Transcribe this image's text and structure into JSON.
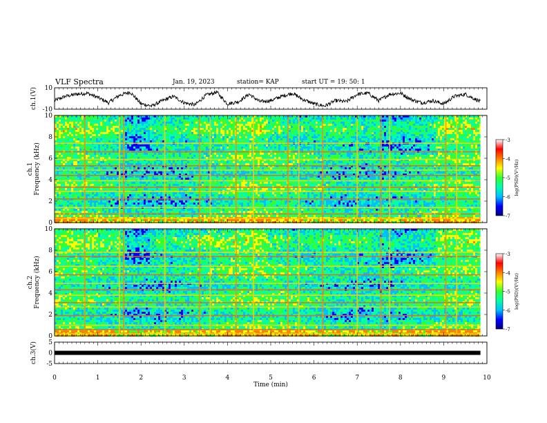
{
  "header": {
    "title": "VLF Spectra",
    "date": "Jan. 19, 2023",
    "station": "station= KAP",
    "start": "start  UT =   19: 50: 1"
  },
  "chart_data": [
    {
      "type": "line",
      "panel": "ch1-waveform",
      "ylabel": "ch.1(V)",
      "ylim": [
        -10,
        10
      ],
      "yticks": [
        "10",
        "-10"
      ],
      "xlim": [
        0,
        10
      ],
      "x_extent": [
        0,
        9.85
      ],
      "series": [
        {
          "x": [
            0,
            0.25,
            0.5,
            0.75,
            1,
            1.25,
            1.5,
            1.75,
            2,
            2.25,
            2.5,
            2.75,
            3,
            3.25,
            3.5,
            3.75,
            4,
            4.25,
            4.5,
            4.75,
            5,
            5.25,
            5.5,
            5.75,
            6,
            6.25,
            6.5,
            6.75,
            7,
            7.25,
            7.5,
            7.75,
            8,
            8.25,
            8.5,
            8.75,
            9,
            9.25,
            9.5,
            9.75,
            9.85
          ],
          "values": [
            -2,
            2,
            4,
            5,
            1,
            -4,
            3,
            6,
            -5,
            -7,
            -2,
            2,
            -4,
            -6,
            3,
            6,
            -5,
            -3,
            4,
            -3,
            -2,
            2,
            5,
            -1,
            -5,
            -7,
            -2,
            -3,
            4,
            5,
            -2,
            4,
            5,
            -1,
            -4,
            -2,
            -5,
            2,
            4,
            -1,
            -3
          ]
        }
      ],
      "line_color": "#000000"
    },
    {
      "type": "heatmap",
      "panel": "ch1-spectrogram",
      "ylabel": "ch.1\nFrequency (kHz)",
      "ylim": [
        0,
        10
      ],
      "yticks": [
        "0",
        "2",
        "4",
        "6",
        "8",
        "10"
      ],
      "xlim": [
        0,
        10
      ],
      "x_extent": [
        0,
        9.85
      ],
      "line_freqs_khz": [
        0.4,
        0.8,
        1.4,
        2.2,
        2.9,
        3.3,
        3.9,
        4.4,
        4.9,
        5.3,
        5.9,
        6.6,
        7.4
      ],
      "burst_times_min": [
        0.7,
        1.5,
        1.6,
        2.55,
        3.35,
        3.6,
        4.2,
        4.6,
        5.4,
        5.65,
        6.2,
        7.0,
        7.55,
        7.75,
        9.05,
        9.3
      ]
    },
    {
      "type": "heatmap",
      "panel": "ch2-spectrogram",
      "ylabel": "ch.2\nFrequency (kHz)",
      "ylim": [
        0,
        10
      ],
      "yticks": [
        "0",
        "2",
        "4",
        "6",
        "8",
        "10"
      ],
      "xlim": [
        0,
        10
      ],
      "x_extent": [
        0,
        9.85
      ],
      "line_freqs_khz": [
        0.2,
        0.6,
        1.0,
        1.9,
        2.7,
        3.1,
        3.8,
        4.3,
        4.9,
        5.7,
        6.5,
        7.4,
        7.8
      ],
      "burst_times_min": [
        0.7,
        1.5,
        1.6,
        2.55,
        3.35,
        3.6,
        4.2,
        4.6,
        5.4,
        5.65,
        6.2,
        7.0,
        7.55,
        7.75,
        9.05,
        9.3
      ]
    },
    {
      "type": "line",
      "panel": "ch3-waveform",
      "ylabel": "ch.3(V)",
      "ylim": [
        -5,
        5
      ],
      "yticks": [
        "5",
        "0",
        "-5"
      ],
      "xlim": [
        0,
        10
      ],
      "x_extent": [
        0,
        9.85
      ],
      "series": [
        {
          "x": [
            0,
            9.85
          ],
          "values": [
            0,
            0
          ]
        }
      ],
      "line_color": "#000000"
    }
  ],
  "xaxis": {
    "label": "Time (min)",
    "ticks": [
      "0",
      "1",
      "2",
      "3",
      "4",
      "5",
      "6",
      "7",
      "8",
      "9",
      "10"
    ]
  },
  "colorbar": {
    "label": "log(PSD)(V²/Hz)",
    "ticks": [
      "-3",
      "-4",
      "-5",
      "-6",
      "-7"
    ],
    "range": [
      -7,
      -3
    ],
    "colors": [
      "#000080",
      "#0000ff",
      "#00bfff",
      "#00ffaa",
      "#33ff33",
      "#ffff00",
      "#ff7f00",
      "#ff0000",
      "#ffffff"
    ]
  }
}
